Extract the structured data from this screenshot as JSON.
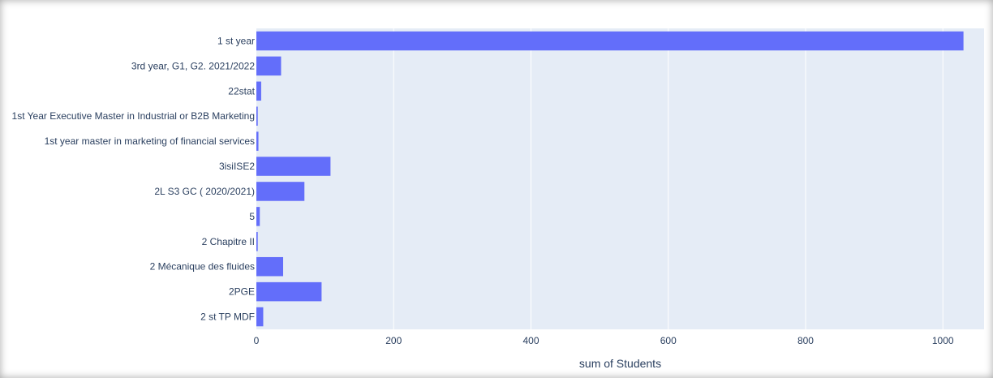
{
  "chart_data": {
    "type": "bar",
    "orientation": "horizontal",
    "categories": [
      "1 st year",
      "3rd year, G1, G2. 2021/2022",
      "22stat",
      "1st Year Executive Master in Industrial or B2B Marketing",
      "1st year master in marketing of financial services",
      "3isiISE2",
      "2L S3 GC ( 2020/2021)",
      "5",
      "2 Chapitre II",
      "2 Mécanique des fluides",
      "2PGE",
      "2 st TP MDF"
    ],
    "values": [
      1030,
      36,
      7,
      2,
      3,
      108,
      70,
      5,
      2,
      39,
      95,
      10
    ],
    "xlabel": "sum of Students",
    "ylabel": "",
    "title": "",
    "xlim": [
      0,
      1060
    ],
    "xticks": [
      0,
      200,
      400,
      600,
      800,
      1000
    ],
    "grid": true,
    "colors": {
      "bar": "#636efa",
      "plot_bg": "#e5ecf6",
      "grid": "#ffffff",
      "text": "#2a3f5f"
    }
  }
}
